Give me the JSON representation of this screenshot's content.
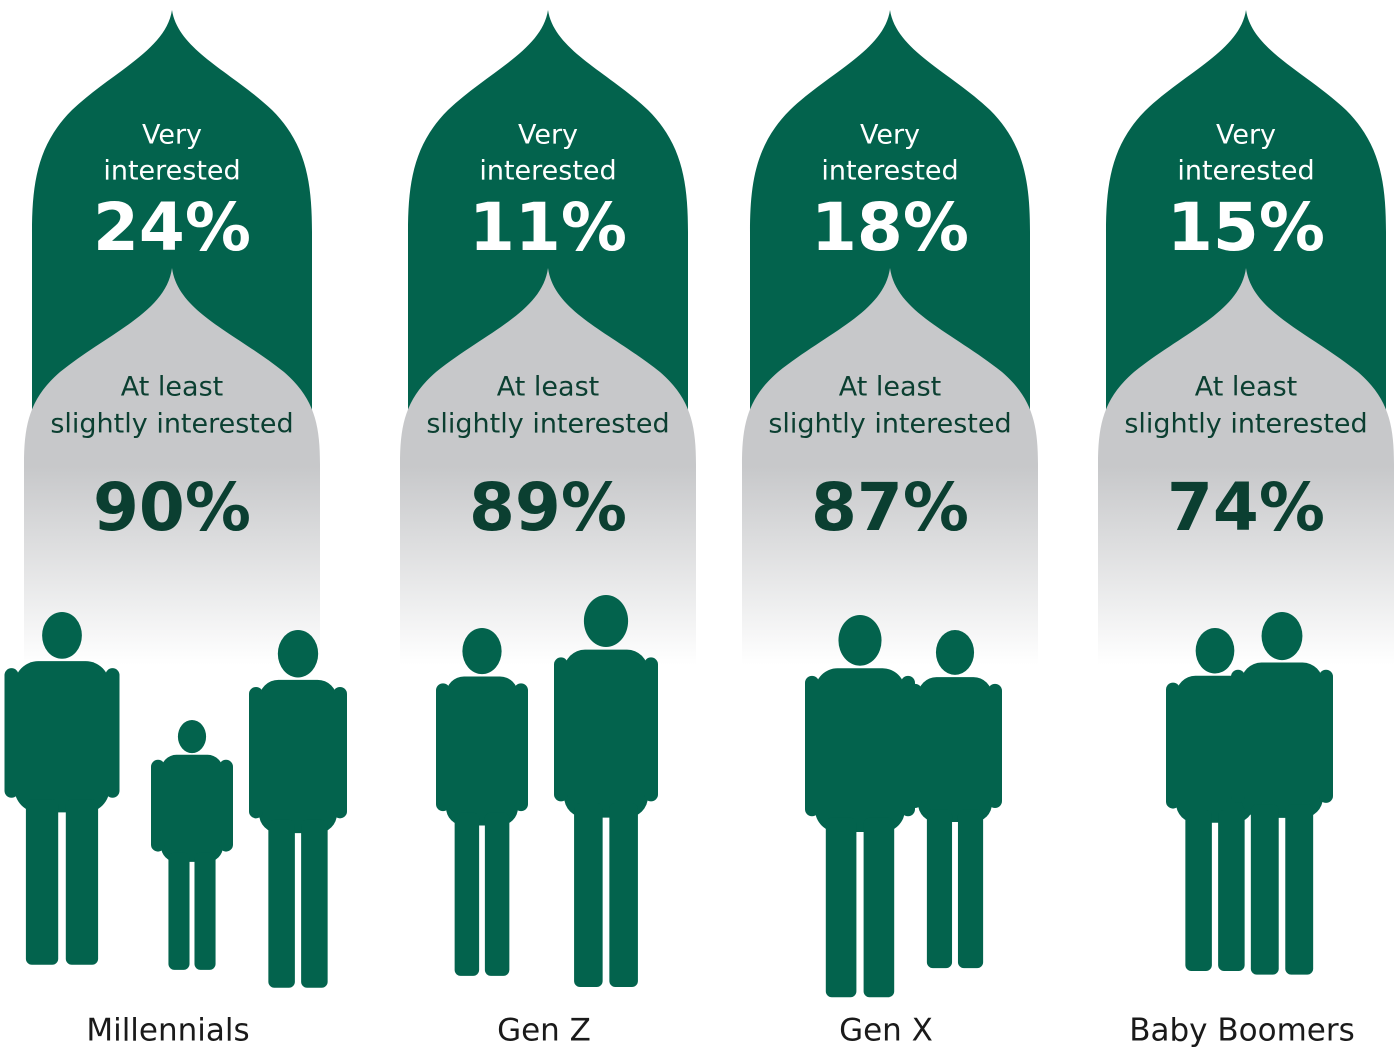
{
  "panels": [
    {
      "name": "Millennials",
      "very_label_1": "Very",
      "very_label_2": "interested",
      "very_value": "24%",
      "slight_label_1": "At least",
      "slight_label_2": "slightly interested",
      "slight_value": "90%"
    },
    {
      "name": "Gen Z",
      "very_label_1": "Very",
      "very_label_2": "interested",
      "very_value": "11%",
      "slight_label_1": "At least",
      "slight_label_2": "slightly interested",
      "slight_value": "89%"
    },
    {
      "name": "Gen X",
      "very_label_1": "Very",
      "very_label_2": "interested",
      "very_value": "18%",
      "slight_label_1": "At least",
      "slight_label_2": "slightly interested",
      "slight_value": "87%"
    },
    {
      "name": "Baby Boomers",
      "very_label_1": "Very",
      "very_label_2": "interested",
      "very_value": "15%",
      "slight_label_1": "At least",
      "slight_label_2": "slightly interested",
      "slight_value": "74%"
    }
  ]
}
